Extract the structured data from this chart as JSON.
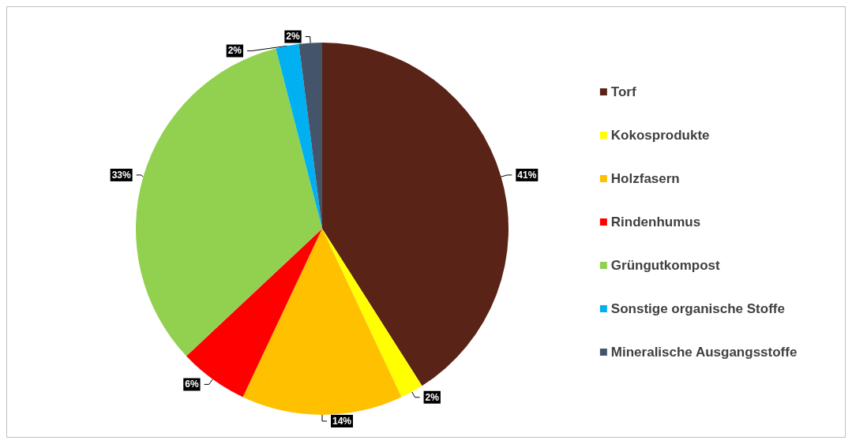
{
  "chart_data": {
    "type": "pie",
    "categories": [
      "Torf",
      "Kokosprodukte",
      "Holzfasern",
      "Rindenhumus",
      "Grüngutkompost",
      "Sonstige organische Stoffe",
      "Mineralische Ausgangsstoffe"
    ],
    "values": [
      41,
      2,
      14,
      6,
      33,
      2,
      2
    ],
    "value_labels": [
      "41%",
      "2%",
      "14%",
      "6%",
      "33%",
      "2%",
      "2%"
    ],
    "colors": [
      "#5a2317",
      "#ffff00",
      "#ffc000",
      "#ff0000",
      "#92d050",
      "#00b0f0",
      "#44546a"
    ],
    "legend": "right"
  }
}
